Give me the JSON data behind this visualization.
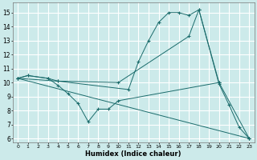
{
  "xlabel": "Humidex (Indice chaleur)",
  "bg_color": "#cceaea",
  "grid_color": "#ffffff",
  "line_color": "#1a6b6b",
  "xlim": [
    -0.5,
    23.5
  ],
  "ylim": [
    5.7,
    15.7
  ],
  "yticks": [
    6,
    7,
    8,
    9,
    10,
    11,
    12,
    13,
    14,
    15
  ],
  "xticks": [
    0,
    1,
    2,
    3,
    4,
    5,
    6,
    7,
    8,
    9,
    10,
    11,
    12,
    13,
    14,
    15,
    16,
    17,
    18,
    19,
    20,
    21,
    22,
    23
  ],
  "line1_x": [
    0,
    1,
    3,
    4,
    5,
    6,
    7,
    8,
    9,
    10,
    20
  ],
  "line1_y": [
    10.3,
    10.5,
    10.3,
    9.8,
    9.2,
    8.5,
    7.2,
    8.1,
    8.1,
    8.7,
    10.0
  ],
  "line2_x": [
    0,
    1,
    3,
    4,
    11,
    12,
    13,
    14,
    15,
    16,
    17,
    18,
    20,
    21,
    22,
    23
  ],
  "line2_y": [
    10.3,
    10.5,
    10.3,
    10.1,
    9.5,
    11.5,
    13.0,
    14.3,
    15.0,
    15.0,
    14.8,
    15.2,
    9.9,
    8.4,
    6.8,
    6.0
  ],
  "line3_x": [
    0,
    23
  ],
  "line3_y": [
    10.3,
    6.0
  ],
  "line4_x": [
    0,
    4,
    10,
    17,
    18,
    20,
    23
  ],
  "line4_y": [
    10.3,
    10.1,
    10.0,
    13.3,
    15.2,
    10.0,
    6.0
  ]
}
